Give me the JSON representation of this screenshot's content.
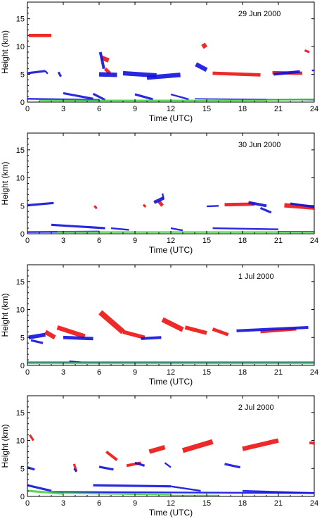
{
  "colors": {
    "red": "#ee1111",
    "blue": "#1111dd",
    "green": "#33cc33"
  },
  "chart_data": [
    {
      "type": "scatter",
      "date": "29 Jun 2000",
      "xlabel": "Time (UTC)",
      "ylabel": "Height (km)",
      "xlim": [
        0,
        24
      ],
      "ylim": [
        0,
        18
      ],
      "xticks": [
        "0",
        "3",
        "6",
        "9",
        "12",
        "15",
        "18",
        "21",
        "24"
      ],
      "yticks": [
        "0",
        "5",
        "10",
        "15"
      ],
      "series": [
        {
          "color": "red",
          "segments": [
            [
              0.1,
              12.0,
              2.0,
              12.0,
              0.6
            ],
            [
              6.2,
              8.0,
              6.8,
              7.5,
              0.8
            ],
            [
              6.5,
              6.0,
              6.9,
              5.2,
              0.6
            ],
            [
              14.7,
              10.5,
              14.9,
              9.8,
              0.8
            ],
            [
              15.5,
              5.2,
              19.5,
              4.9,
              0.6
            ],
            [
              20.5,
              5.3,
              23.0,
              5.2,
              0.6
            ],
            [
              23.2,
              9.3,
              23.6,
              9.0,
              0.4
            ]
          ]
        },
        {
          "color": "blue",
          "segments": [
            [
              0.0,
              5.2,
              1.5,
              5.6,
              0.4
            ],
            [
              1.5,
              5.6,
              1.7,
              5.1,
              0.3
            ],
            [
              2.6,
              5.4,
              2.8,
              4.6,
              0.4
            ],
            [
              6.1,
              9.0,
              6.4,
              6.0,
              0.5
            ],
            [
              6.0,
              5.0,
              7.5,
              4.9,
              0.8
            ],
            [
              8.0,
              5.2,
              10.8,
              4.8,
              0.8
            ],
            [
              10.0,
              4.4,
              12.8,
              4.9,
              0.8
            ],
            [
              14.1,
              6.8,
              15.0,
              5.8,
              0.8
            ],
            [
              20.6,
              5.0,
              22.8,
              5.5,
              0.5
            ],
            [
              23.8,
              5.7,
              24.0,
              5.7,
              0.3
            ],
            [
              0.0,
              0.6,
              6.0,
              0.4,
              0.3
            ],
            [
              3.0,
              1.6,
              5.5,
              0.6,
              0.4
            ],
            [
              5.5,
              1.5,
              6.5,
              0.4,
              0.4
            ],
            [
              9.0,
              1.4,
              10.5,
              0.5,
              0.4
            ],
            [
              12.0,
              1.4,
              13.5,
              0.5,
              0.3
            ],
            [
              14.0,
              0.6,
              24.0,
              0.4,
              0.2
            ]
          ]
        },
        {
          "color": "green",
          "segments": [
            [
              1.0,
              0.3,
              20.0,
              0.3,
              0.3
            ],
            [
              20.0,
              0.4,
              24.0,
              0.5,
              0.3
            ]
          ]
        }
      ]
    },
    {
      "type": "scatter",
      "date": "30 Jun 2000",
      "xlabel": "Time (UTC)",
      "ylabel": "Height (km)",
      "xlim": [
        0,
        24
      ],
      "ylim": [
        0,
        18
      ],
      "xticks": [
        "0",
        "3",
        "6",
        "9",
        "12",
        "15",
        "18",
        "21",
        "24"
      ],
      "yticks": [
        "0",
        "5",
        "10",
        "15"
      ],
      "series": [
        {
          "color": "red",
          "segments": [
            [
              5.6,
              5.0,
              5.8,
              4.5,
              0.4
            ],
            [
              9.7,
              5.2,
              9.9,
              4.8,
              0.4
            ],
            [
              11.0,
              5.8,
              11.3,
              5.0,
              0.6
            ],
            [
              16.5,
              5.2,
              19.0,
              5.3,
              0.6
            ],
            [
              21.5,
              5.1,
              24.0,
              4.7,
              0.8
            ]
          ]
        },
        {
          "color": "blue",
          "segments": [
            [
              0.0,
              5.1,
              2.2,
              5.5,
              0.4
            ],
            [
              10.6,
              5.6,
              11.4,
              6.4,
              0.6
            ],
            [
              11.3,
              7.2,
              11.4,
              6.2,
              0.3
            ],
            [
              15.0,
              4.9,
              16.0,
              5.0,
              0.3
            ],
            [
              18.5,
              5.6,
              20.0,
              5.0,
              0.5
            ],
            [
              19.5,
              4.6,
              20.4,
              3.8,
              0.4
            ],
            [
              22.0,
              5.4,
              24.0,
              4.8,
              0.4
            ],
            [
              0.0,
              0.3,
              6.0,
              0.4,
              0.3
            ],
            [
              2.0,
              1.6,
              6.5,
              1.0,
              0.4
            ],
            [
              7.0,
              1.0,
              8.5,
              0.7,
              0.3
            ],
            [
              12.0,
              1.0,
              13.0,
              0.6,
              0.3
            ],
            [
              15.5,
              1.0,
              21.0,
              0.8,
              0.3
            ],
            [
              21.0,
              0.4,
              24.0,
              0.4,
              0.2
            ]
          ]
        },
        {
          "color": "green",
          "segments": [
            [
              2.5,
              0.3,
              24.0,
              0.3,
              0.3
            ]
          ]
        }
      ]
    },
    {
      "type": "scatter",
      "date": "1 Jul 2000",
      "xlabel": "Time (UTC)",
      "ylabel": "Height (km)",
      "xlim": [
        0,
        24
      ],
      "ylim": [
        0,
        18
      ],
      "xticks": [
        "0",
        "3",
        "6",
        "9",
        "12",
        "15",
        "18",
        "21",
        "24"
      ],
      "yticks": [
        "0",
        "5",
        "10",
        "15"
      ],
      "series": [
        {
          "color": "red",
          "segments": [
            [
              1.5,
              6.0,
              2.3,
              5.0,
              0.8
            ],
            [
              2.5,
              6.8,
              4.8,
              5.2,
              0.8
            ],
            [
              6.1,
              9.5,
              8.0,
              6.0,
              1.0
            ],
            [
              8.0,
              6.0,
              9.8,
              5.0,
              0.7
            ],
            [
              11.3,
              8.2,
              13.0,
              6.4,
              0.9
            ],
            [
              13.2,
              6.8,
              15.0,
              5.8,
              0.7
            ],
            [
              15.5,
              6.5,
              16.8,
              5.5,
              0.6
            ],
            [
              19.5,
              6.0,
              22.5,
              6.5,
              0.5
            ]
          ]
        },
        {
          "color": "blue",
          "segments": [
            [
              0.1,
              5.0,
              1.5,
              5.5,
              0.7
            ],
            [
              0.3,
              4.5,
              1.3,
              4.0,
              0.4
            ],
            [
              3.0,
              5.0,
              5.5,
              4.8,
              0.6
            ],
            [
              9.5,
              4.8,
              11.2,
              5.0,
              0.5
            ],
            [
              17.5,
              6.2,
              23.5,
              6.8,
              0.5
            ],
            [
              0.0,
              0.6,
              24.0,
              0.6,
              0.2
            ],
            [
              3.5,
              0.8,
              4.5,
              0.6,
              0.2
            ]
          ]
        },
        {
          "color": "green",
          "segments": [
            [
              0.0,
              0.4,
              24.0,
              0.4,
              0.35
            ]
          ]
        }
      ]
    },
    {
      "type": "scatter",
      "date": "2 Jul 2000",
      "xlabel": "Time (UTC)",
      "ylabel": "Height (km)",
      "xlim": [
        0,
        24
      ],
      "ylim": [
        0,
        18
      ],
      "xticks": [
        "0",
        "3",
        "6",
        "9",
        "12",
        "15",
        "18",
        "21",
        "24"
      ],
      "yticks": [
        "0",
        "5",
        "10",
        "15"
      ],
      "series": [
        {
          "color": "red",
          "segments": [
            [
              0.2,
              11.0,
              0.5,
              10.0,
              0.4
            ],
            [
              3.9,
              5.8,
              4.1,
              4.5,
              0.4
            ],
            [
              6.6,
              8.0,
              7.5,
              6.5,
              0.5
            ],
            [
              8.3,
              5.5,
              9.5,
              6.0,
              0.5
            ],
            [
              10.2,
              8.0,
              11.5,
              8.8,
              0.8
            ],
            [
              13.0,
              8.2,
              15.5,
              9.8,
              0.9
            ],
            [
              18.0,
              8.5,
              21.0,
              10.0,
              0.8
            ],
            [
              23.6,
              9.6,
              24.0,
              9.5,
              0.5
            ]
          ]
        },
        {
          "color": "blue",
          "segments": [
            [
              0.0,
              5.2,
              0.6,
              4.8,
              0.4
            ],
            [
              3.9,
              5.0,
              4.1,
              4.4,
              0.3
            ],
            [
              6.0,
              5.3,
              7.2,
              4.8,
              0.4
            ],
            [
              9.0,
              6.0,
              9.8,
              5.5,
              0.4
            ],
            [
              11.5,
              6.0,
              12.0,
              5.2,
              0.3
            ],
            [
              16.5,
              5.8,
              17.8,
              5.2,
              0.4
            ],
            [
              0.0,
              2.0,
              2.0,
              1.0,
              0.4
            ],
            [
              2.0,
              0.8,
              24.0,
              0.6,
              0.3
            ],
            [
              5.5,
              2.0,
              12.0,
              1.8,
              0.4
            ],
            [
              12.0,
              1.8,
              14.5,
              1.0,
              0.3
            ],
            [
              18.0,
              1.0,
              24.0,
              0.6,
              0.3
            ]
          ]
        },
        {
          "color": "green",
          "segments": [
            [
              0.0,
              1.0,
              3.0,
              0.5,
              0.4
            ],
            [
              3.0,
              0.6,
              12.0,
              0.3,
              0.3
            ],
            [
              12.0,
              0.2,
              16.0,
              0.2,
              0.2
            ]
          ]
        }
      ]
    }
  ]
}
